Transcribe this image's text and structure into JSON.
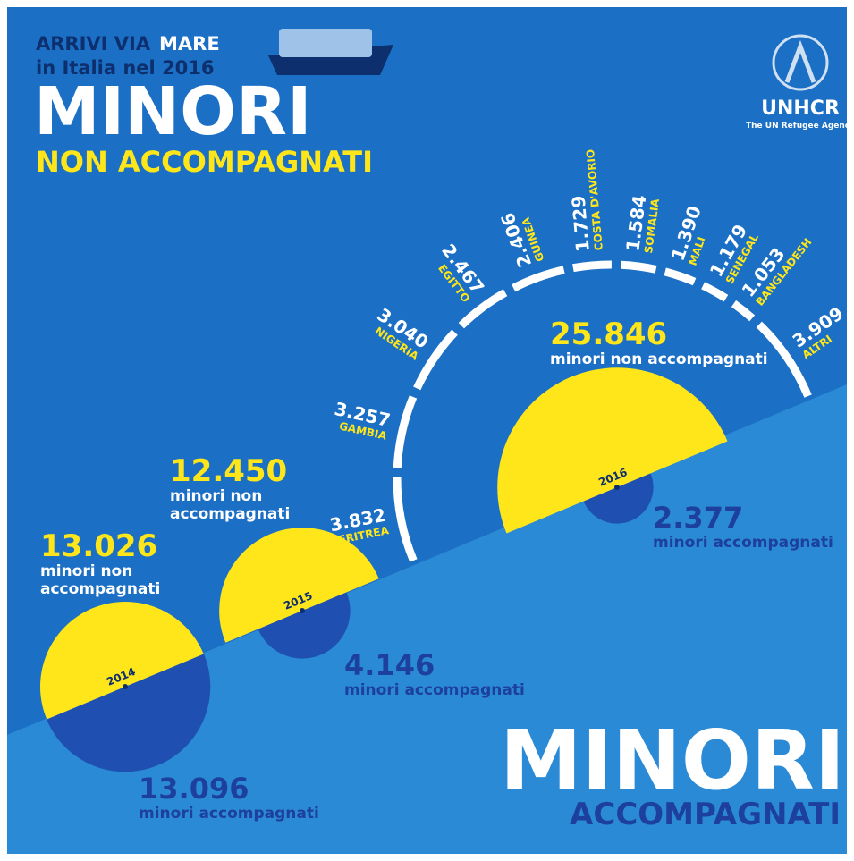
{
  "header": {
    "line1_a": "ARRIVI VIA",
    "line1_b": "MARE",
    "line2": "in Italia nel 2016",
    "title": "MINORI",
    "subtitle": "NON ACCOMPAGNATI"
  },
  "logo": {
    "name": "UNHCR",
    "tagline": "The UN Refugee Agency"
  },
  "footer": {
    "title": "MINORI",
    "subtitle": "ACCOMPAGNATI"
  },
  "years": [
    {
      "year": "2014",
      "unaccompanied": {
        "value": 13026,
        "label": "13.026"
      },
      "unaccompanied_text": [
        "minori non",
        "accompagnati"
      ],
      "accompanied": {
        "value": 13096,
        "label": "13.096"
      },
      "accompanied_text": "minori accompagnati"
    },
    {
      "year": "2015",
      "unaccompanied": {
        "value": 12450,
        "label": "12.450"
      },
      "unaccompanied_text": [
        "minori non",
        "accompagnati"
      ],
      "accompanied": {
        "value": 4146,
        "label": "4.146"
      },
      "accompanied_text": "minori accompagnati"
    },
    {
      "year": "2016",
      "unaccompanied": {
        "value": 25846,
        "label": "25.846"
      },
      "unaccompanied_text": [
        "minori non accompagnati"
      ],
      "accompanied": {
        "value": 2377,
        "label": "2.377"
      },
      "accompanied_text": "minori accompagnati"
    }
  ],
  "countries": [
    {
      "name": "ERITREA",
      "value": {
        "value": 3832,
        "label": "3.832"
      }
    },
    {
      "name": "GAMBIA",
      "value": {
        "value": 3257,
        "label": "3.257"
      }
    },
    {
      "name": "NIGERIA",
      "value": {
        "value": 3040,
        "label": "3.040"
      }
    },
    {
      "name": "EGITTO",
      "value": {
        "value": 2467,
        "label": "2.467"
      }
    },
    {
      "name": "GUINEA",
      "value": {
        "value": 2406,
        "label": "2.406"
      }
    },
    {
      "name": "COSTA D'AVORIO",
      "value": {
        "value": 1729,
        "label": "1.729"
      }
    },
    {
      "name": "SOMALIA",
      "value": {
        "value": 1584,
        "label": "1.584"
      }
    },
    {
      "name": "MALI",
      "value": {
        "value": 1390,
        "label": "1.390"
      }
    },
    {
      "name": "SENEGAL",
      "value": {
        "value": 1179,
        "label": "1.179"
      }
    },
    {
      "name": "BANGLADESH",
      "value": {
        "value": 1053,
        "label": "1.053"
      }
    },
    {
      "name": "ALTRI",
      "value": {
        "value": 3909,
        "label": "3.909"
      }
    }
  ]
}
